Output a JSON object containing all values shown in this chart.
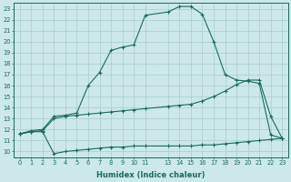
{
  "xlabel": "Humidex (Indice chaleur)",
  "bg_color": "#cce8e8",
  "grid_color": "#aacccc",
  "line_color": "#1a6b5e",
  "xlim": [
    -0.5,
    23.5
  ],
  "ylim": [
    9.5,
    23.5
  ],
  "xticks": [
    0,
    1,
    2,
    3,
    4,
    5,
    6,
    7,
    8,
    9,
    10,
    11,
    13,
    14,
    15,
    16,
    17,
    18,
    19,
    20,
    21,
    22,
    23
  ],
  "yticks": [
    10,
    11,
    12,
    13,
    14,
    15,
    16,
    17,
    18,
    19,
    20,
    21,
    22,
    23
  ],
  "lines": [
    {
      "x": [
        0,
        1,
        2,
        3,
        4,
        5,
        6,
        7,
        8,
        9,
        10,
        11,
        13,
        14,
        15,
        16,
        17,
        18,
        19,
        20,
        21,
        22,
        23
      ],
      "y": [
        11.6,
        11.8,
        11.8,
        9.8,
        10.0,
        10.1,
        10.2,
        10.3,
        10.4,
        10.4,
        10.5,
        10.5,
        10.5,
        10.5,
        10.5,
        10.6,
        10.6,
        10.7,
        10.8,
        10.9,
        11.0,
        11.1,
        11.2
      ]
    },
    {
      "x": [
        0,
        1,
        2,
        3,
        4,
        5,
        6,
        7,
        8,
        9,
        10,
        11,
        13,
        14,
        15,
        16,
        17,
        18,
        19,
        20,
        21,
        22,
        23
      ],
      "y": [
        11.6,
        11.8,
        11.9,
        13.0,
        13.2,
        13.3,
        13.4,
        13.5,
        13.6,
        13.7,
        13.8,
        13.9,
        14.1,
        14.2,
        14.3,
        14.6,
        15.0,
        15.5,
        16.1,
        16.5,
        16.5,
        13.2,
        11.2
      ]
    },
    {
      "x": [
        0,
        1,
        2,
        3,
        4,
        5,
        6,
        7,
        8,
        9,
        10,
        11,
        13,
        14,
        15,
        16,
        17,
        18,
        19,
        20,
        21,
        22,
        23
      ],
      "y": [
        11.6,
        11.9,
        12.0,
        13.2,
        13.3,
        13.5,
        16.0,
        17.2,
        19.2,
        19.5,
        19.7,
        22.4,
        22.7,
        23.2,
        23.2,
        22.5,
        20.0,
        17.0,
        16.5,
        16.4,
        16.2,
        11.5,
        11.2
      ]
    }
  ]
}
